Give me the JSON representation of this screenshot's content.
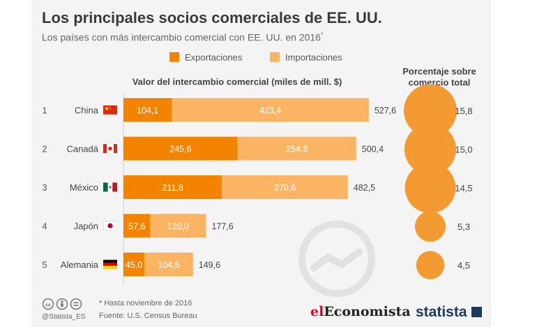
{
  "title": "Los principales socios comerciales de EE. UU.",
  "subtitle": "Los países con más intercambio comercial con EE. UU. en 2016",
  "subtitle_marker": "*",
  "legend": [
    {
      "label": "Exportaciones",
      "color": "#f48400"
    },
    {
      "label": "Importaciones",
      "color": "#fab464"
    }
  ],
  "colors": {
    "exports": "#f48400",
    "imports": "#fab464",
    "bubble": "#f39a32"
  },
  "chart_data": {
    "type": "bar",
    "stacked": true,
    "orientation": "horizontal",
    "title": "Valor del intercambio comercial (miles de mill. $)",
    "categories": [
      "China",
      "Canadá",
      "México",
      "Japón",
      "Alemania"
    ],
    "ranks": [
      "1",
      "2",
      "3",
      "4",
      "5"
    ],
    "flags": [
      "china-flag",
      "canada-flag",
      "mexico-flag",
      "japan-flag",
      "germany-flag"
    ],
    "series": [
      {
        "name": "Exportaciones",
        "values": [
          104.1,
          245.6,
          211.8,
          57.6,
          45.0
        ],
        "labels": [
          "104,1",
          "245,6",
          "211,8",
          "57,6",
          "45,0"
        ]
      },
      {
        "name": "Importaciones",
        "values": [
          423.4,
          254.8,
          270.6,
          120.0,
          104.6
        ],
        "labels": [
          "423,4",
          "254,8",
          "270,6",
          "120,0",
          "104,6"
        ]
      }
    ],
    "totals": [
      527.6,
      500.4,
      482.5,
      177.6,
      149.6
    ],
    "total_labels": [
      "527,6",
      "500,4",
      "482,5",
      "177,6",
      "149,6"
    ],
    "share": {
      "title_line1": "Porcentaje sobre",
      "title_line2": "comercio total",
      "values": [
        15.8,
        15.0,
        14.5,
        5.3,
        4.5
      ],
      "labels": [
        "15,8",
        "15,0",
        "14,5",
        "5,3",
        "4,5"
      ]
    }
  },
  "footer": {
    "note": "* Hasta noviembre de 2016",
    "source": "Fuente:  U.S. Census Bureau",
    "handle": "@Statista_ES",
    "cc_icons": [
      "cc-icon",
      "attribution-icon",
      "noderivs-icon"
    ],
    "brand1_part1": "el",
    "brand1_part2": "Economista",
    "brand2": "statista"
  }
}
